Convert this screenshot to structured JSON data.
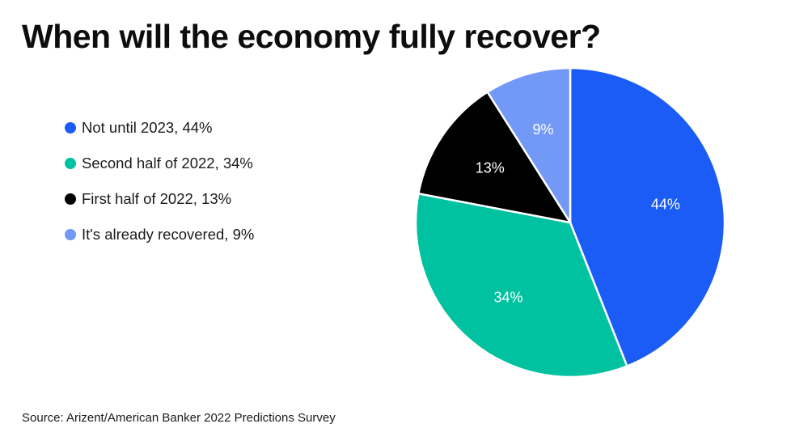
{
  "title": "When will the economy fully recover?",
  "source": "Source: Arizent/American Banker 2022 Predictions Survey",
  "chart_data": {
    "type": "pie",
    "title": "When will the economy fully recover?",
    "legend_position": "left",
    "slices": [
      {
        "legend": "Not until 2023, 44%",
        "label": "44%",
        "value": 44,
        "color": "#1a5cf5",
        "label_color": "#ffffff"
      },
      {
        "legend": "Second half of 2022, 34%",
        "label": "34%",
        "value": 34,
        "color": "#00c2a0",
        "label_color": "#ffffff"
      },
      {
        "legend": "First half of 2022, 13%",
        "label": "13%",
        "value": 13,
        "color": "#000000",
        "label_color": "#ffffff"
      },
      {
        "legend": "It's already recovered, 9%",
        "label": "9%",
        "value": 9,
        "color": "#7399f7",
        "label_color": "#ffffff"
      }
    ]
  }
}
